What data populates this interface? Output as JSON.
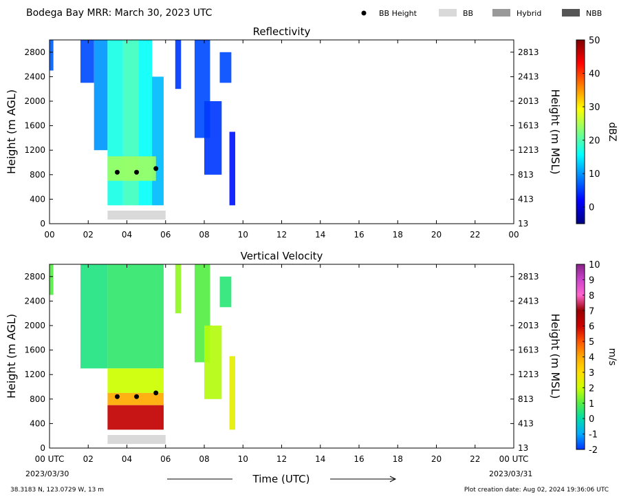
{
  "header": {
    "title": "Bodega Bay MRR:  March 30, 2023 UTC",
    "legend": [
      {
        "label": "BB Height",
        "marker": "dot",
        "color": "#000000"
      },
      {
        "label": "BB",
        "marker": "rect",
        "color": "#d9d9d9"
      },
      {
        "label": "Hybrid",
        "marker": "rect",
        "color": "#999999"
      },
      {
        "label": "NBB",
        "marker": "rect",
        "color": "#555555"
      }
    ]
  },
  "footer": {
    "location": "38.3183 N, 123.0729 W, 13 m",
    "created": "Plot creation date: Aug 02, 2024 19:36:06 UTC",
    "start_date": "2023/03/30",
    "end_date": "2023/03/31",
    "time_label": "Time (UTC)"
  },
  "chart_data": [
    {
      "type": "heatmap",
      "title": "Reflectivity",
      "xlabel": "",
      "ylabel": "Height (m AGL)",
      "ylabel_right": "Height (m MSL)",
      "xlim": [
        0,
        24
      ],
      "ylim": [
        0,
        3000
      ],
      "x_ticks": [
        "00",
        "02",
        "04",
        "06",
        "08",
        "10",
        "12",
        "14",
        "16",
        "18",
        "20",
        "22",
        "00"
      ],
      "y_ticks": [
        0,
        400,
        800,
        1200,
        1600,
        2000,
        2400,
        2800
      ],
      "y_ticks_right": [
        "13",
        "413",
        "813",
        "1213",
        "1613",
        "2013",
        "2413",
        "2813"
      ],
      "colorbar": {
        "label": "dBZ",
        "ticks": [
          "0",
          "10",
          "20",
          "30",
          "40",
          "50"
        ],
        "range": [
          -5,
          50
        ],
        "colors": [
          "#00007f",
          "#0000ff",
          "#007fff",
          "#00ffff",
          "#7fff7f",
          "#ffff00",
          "#ff7f00",
          "#ff0000",
          "#7f0000"
        ]
      },
      "bb_height": [
        {
          "x": 3.5,
          "y": 840
        },
        {
          "x": 4.5,
          "y": 840
        },
        {
          "x": 5.5,
          "y": 900
        }
      ],
      "bb_bars": [
        {
          "type": "BB",
          "start": 3.0,
          "end": 6.0
        }
      ],
      "echoes": [
        {
          "x0": 0.0,
          "x1": 0.2,
          "y0": 2500,
          "y1": 3000,
          "value": 7
        },
        {
          "x0": 1.6,
          "x1": 2.3,
          "y0": 2300,
          "y1": 3000,
          "value": 6
        },
        {
          "x0": 2.3,
          "x1": 3.0,
          "y0": 1200,
          "y1": 3000,
          "value": 10
        },
        {
          "x0": 3.0,
          "x1": 3.8,
          "y0": 300,
          "y1": 3000,
          "value": 17
        },
        {
          "x0": 3.8,
          "x1": 4.6,
          "y0": 300,
          "y1": 3000,
          "value": 19
        },
        {
          "x0": 4.6,
          "x1": 5.3,
          "y0": 300,
          "y1": 3000,
          "value": 16
        },
        {
          "x0": 5.3,
          "x1": 5.9,
          "y0": 300,
          "y1": 2400,
          "value": 12
        },
        {
          "x0": 3.0,
          "x1": 5.5,
          "y0": 700,
          "y1": 1100,
          "value": 24
        },
        {
          "x0": 6.5,
          "x1": 6.8,
          "y0": 2200,
          "y1": 3000,
          "value": 5
        },
        {
          "x0": 7.5,
          "x1": 8.3,
          "y0": 1400,
          "y1": 3000,
          "value": 6
        },
        {
          "x0": 8.0,
          "x1": 8.9,
          "y0": 800,
          "y1": 2000,
          "value": 5
        },
        {
          "x0": 8.8,
          "x1": 9.4,
          "y0": 2300,
          "y1": 2800,
          "value": 6
        },
        {
          "x0": 9.3,
          "x1": 9.6,
          "y0": 300,
          "y1": 1500,
          "value": 3
        }
      ]
    },
    {
      "type": "heatmap",
      "title": "Vertical Velocity",
      "xlabel": "Time (UTC)",
      "ylabel": "Height (m AGL)",
      "ylabel_right": "Height (m MSL)",
      "xlim": [
        0,
        24
      ],
      "ylim": [
        0,
        3000
      ],
      "x_ticks": [
        "00 UTC",
        "02",
        "04",
        "06",
        "08",
        "10",
        "12",
        "14",
        "16",
        "18",
        "20",
        "22",
        "00 UTC"
      ],
      "y_ticks": [
        0,
        400,
        800,
        1200,
        1600,
        2000,
        2400,
        2800
      ],
      "y_ticks_right": [
        "13",
        "413",
        "813",
        "1213",
        "1613",
        "2013",
        "2413",
        "2813"
      ],
      "colorbar": {
        "label": "m/s",
        "ticks": [
          "-2",
          "-1",
          "0",
          "1",
          "2",
          "3",
          "4",
          "5",
          "6",
          "7",
          "8",
          "9",
          "10"
        ],
        "range": [
          -2,
          10
        ],
        "colors": [
          "#0033ff",
          "#00aaff",
          "#00ddaa",
          "#55ee44",
          "#ccff00",
          "#ffdd00",
          "#ffaa00",
          "#ff5500",
          "#cc0000",
          "#990000",
          "#ff66cc",
          "#cc44cc",
          "#882288"
        ]
      },
      "bb_height": [
        {
          "x": 3.5,
          "y": 840
        },
        {
          "x": 4.5,
          "y": 840
        },
        {
          "x": 5.5,
          "y": 900
        }
      ],
      "bb_bars": [
        {
          "type": "BB",
          "start": 3.0,
          "end": 6.0
        }
      ],
      "echoes": [
        {
          "x0": 0.0,
          "x1": 0.2,
          "y0": 2500,
          "y1": 3000,
          "value": 1.0
        },
        {
          "x0": 1.6,
          "x1": 3.0,
          "y0": 1300,
          "y1": 3000,
          "value": 0.4
        },
        {
          "x0": 3.0,
          "x1": 5.9,
          "y0": 1300,
          "y1": 3000,
          "value": 0.6
        },
        {
          "x0": 3.0,
          "x1": 5.9,
          "y0": 900,
          "y1": 1300,
          "value": 2.0
        },
        {
          "x0": 3.0,
          "x1": 5.9,
          "y0": 700,
          "y1": 900,
          "value": 4.0
        },
        {
          "x0": 3.0,
          "x1": 5.9,
          "y0": 300,
          "y1": 700,
          "value": 6.2
        },
        {
          "x0": 6.5,
          "x1": 6.8,
          "y0": 2200,
          "y1": 3000,
          "value": 1.5
        },
        {
          "x0": 7.5,
          "x1": 8.3,
          "y0": 1400,
          "y1": 3000,
          "value": 1.0
        },
        {
          "x0": 8.0,
          "x1": 8.9,
          "y0": 800,
          "y1": 2000,
          "value": 1.8
        },
        {
          "x0": 8.8,
          "x1": 9.4,
          "y0": 2300,
          "y1": 2800,
          "value": 0.5
        },
        {
          "x0": 9.3,
          "x1": 9.6,
          "y0": 300,
          "y1": 1500,
          "value": 2.5
        }
      ]
    }
  ]
}
